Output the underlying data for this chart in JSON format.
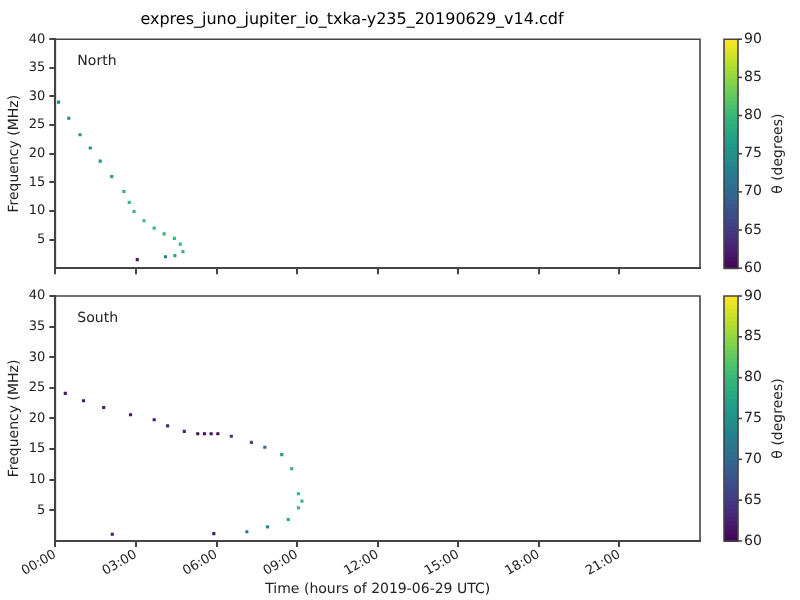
{
  "chart_data": [
    {
      "type": "scatter",
      "title": "expres_juno_jupiter_io_txka-y235_20190629_v14.cdf",
      "ylabel": "Frequency (MHz)",
      "annotations": [
        "North"
      ],
      "tick_labels": "y",
      "marker": "square",
      "clabel": "θ (degrees)",
      "clim": [
        60,
        90
      ],
      "cticks": [
        60,
        65,
        70,
        75,
        80,
        85,
        90
      ],
      "xlim": [
        0,
        24
      ],
      "xticks": [
        {
          "value": 0,
          "label": null
        },
        {
          "value": 3,
          "label": null
        },
        {
          "value": 6,
          "label": null
        },
        {
          "value": 9,
          "label": null
        },
        {
          "value": 12,
          "label": null
        },
        {
          "value": 15,
          "label": null
        },
        {
          "value": 18,
          "label": null
        },
        {
          "value": 21,
          "label": null
        }
      ],
      "ylim": [
        0,
        40
      ],
      "yticks": [
        5,
        10,
        15,
        20,
        25,
        30,
        35,
        40
      ],
      "x": [
        0.12,
        0.5,
        0.92,
        1.3,
        1.67,
        2.1,
        2.55,
        2.75,
        2.93,
        3.3,
        3.68,
        4.05,
        4.43,
        4.65,
        4.75,
        4.45,
        3.05,
        4.1
      ],
      "values": [
        29,
        26.2,
        23.3,
        21,
        18.7,
        16,
        13.4,
        11.5,
        9.9,
        8.3,
        7,
        6,
        5.2,
        4.2,
        2.9,
        2.2,
        1.5,
        2
      ],
      "cvalues": [
        74,
        74,
        75,
        75,
        76,
        77,
        79,
        80,
        80,
        80,
        80,
        80,
        80,
        80,
        80,
        78,
        62,
        73
      ]
    },
    {
      "type": "scatter",
      "ylabel": "Frequency (MHz)",
      "xlabel": "Time (hours of 2019-06-29 UTC)",
      "annotations": [
        "South"
      ],
      "marker": "square",
      "clabel": "θ (degrees)",
      "clim": [
        60,
        90
      ],
      "cticks": [
        60,
        65,
        70,
        75,
        80,
        85,
        90
      ],
      "xlim": [
        0,
        24
      ],
      "xticks": [
        {
          "value": 0,
          "label": "00:00"
        },
        {
          "value": 3,
          "label": "03:00"
        },
        {
          "value": 6,
          "label": "06:00"
        },
        {
          "value": 9,
          "label": "09:00"
        },
        {
          "value": 12,
          "label": "12:00"
        },
        {
          "value": 15,
          "label": "15:00"
        },
        {
          "value": 18,
          "label": "18:00"
        },
        {
          "value": 21,
          "label": "21:00"
        }
      ],
      "ylim": [
        0,
        40
      ],
      "yticks": [
        5,
        10,
        15,
        20,
        25,
        30,
        35,
        40
      ],
      "x": [
        0.37,
        1.05,
        1.8,
        2.8,
        3.68,
        4.18,
        4.8,
        5.3,
        5.55,
        5.8,
        6.05,
        6.55,
        7.3,
        7.8,
        8.43,
        8.8,
        9.05,
        9.18,
        9.05,
        8.67,
        7.9,
        7.13,
        2.12,
        5.9
      ],
      "values": [
        24.1,
        22.9,
        21.8,
        20.6,
        19.8,
        18.8,
        17.9,
        17.5,
        17.5,
        17.5,
        17.5,
        17.1,
        16.1,
        15.3,
        14.1,
        11.8,
        7.7,
        6.5,
        5.4,
        3.5,
        2.3,
        1.5,
        1.1,
        1.2
      ],
      "cvalues": [
        62,
        62,
        62,
        62,
        62,
        63,
        63,
        61,
        61,
        61,
        61,
        64,
        67,
        70,
        76,
        79,
        80,
        80,
        80,
        78,
        74,
        72,
        62,
        62
      ]
    }
  ]
}
